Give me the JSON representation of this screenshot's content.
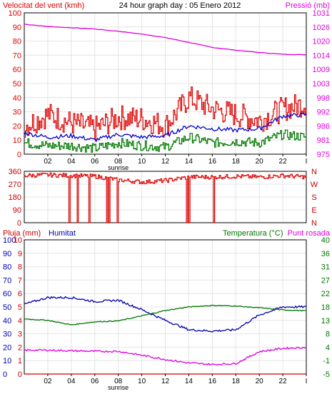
{
  "header": {
    "wind_label": "Velocitat del vent (kmh)",
    "title": "24 hour graph day : 05 Enero 2012",
    "pressure_label": "Pressió (mb)"
  },
  "bottom_header": {
    "rain_label": "Pluja (mm)",
    "humidity_label": "Humitat",
    "temperature_label": "Temperatura (°C)",
    "dewpoint_label": "Punt rosada"
  },
  "colors": {
    "wind": "#dd0000",
    "wind_avg": "#0000cc",
    "wind_low": "#007700",
    "pressure": "#dd00dd",
    "rain": "#cc0000",
    "humidity": "#0000aa",
    "temperature": "#007700",
    "dewpoint": "#dd00dd",
    "grid": "#e4e4e4",
    "frame": "#000000"
  },
  "x_axis": {
    "ticks": [
      "02",
      "04",
      "06",
      "08",
      "10",
      "12",
      "14",
      "16",
      "18",
      "20",
      "22",
      "I"
    ],
    "sunrise_label": "sunrise"
  },
  "chart_data": [
    {
      "type": "line",
      "title": "24 hour graph day : 05 Enero 2012",
      "xlabel": "",
      "left_axis": {
        "label": "Velocitat del vent (kmh)",
        "ticks": [
          0,
          10,
          20,
          30,
          40,
          50,
          60,
          70,
          80,
          90,
          100
        ],
        "ylim": [
          0,
          100
        ]
      },
      "right_axis": {
        "label": "Pressió (mb)",
        "ticks": [
          975,
          981,
          986,
          992,
          998,
          1003,
          1009,
          1014,
          1020,
          1026,
          1031
        ],
        "ylim": [
          975,
          1031
        ]
      },
      "x": [
        0,
        2,
        4,
        6,
        8,
        10,
        12,
        14,
        16,
        18,
        20,
        22,
        24
      ],
      "series": [
        {
          "key": "gust",
          "axis": "left",
          "values": [
            20,
            28,
            22,
            18,
            26,
            25,
            20,
            40,
            32,
            28,
            24,
            32,
            36
          ]
        },
        {
          "key": "average",
          "axis": "left",
          "values": [
            15,
            12,
            13,
            10,
            14,
            12,
            13,
            20,
            18,
            17,
            18,
            27,
            28
          ]
        },
        {
          "key": "low",
          "axis": "left",
          "values": [
            8,
            6,
            6,
            4,
            8,
            6,
            5,
            12,
            8,
            9,
            8,
            14,
            12
          ]
        },
        {
          "key": "pressure",
          "axis": "right",
          "values": [
            1026.5,
            1025.6,
            1025.1,
            1024.6,
            1023.7,
            1022.6,
            1021.2,
            1019.3,
            1017.3,
            1016.2,
            1015.3,
            1014.6,
            1014.4
          ]
        }
      ],
      "grid": true
    },
    {
      "type": "line",
      "title": "",
      "left_axis": {
        "ticks_top_to_bottom": [
          "360",
          "270",
          "180",
          "90",
          "0"
        ],
        "ylim": [
          0,
          360
        ]
      },
      "right_axis": {
        "ticks_top_to_bottom": [
          "N",
          "W",
          "S",
          "E",
          "N"
        ]
      },
      "x": [
        0,
        2,
        4,
        6,
        8,
        10,
        12,
        14,
        16,
        18,
        20,
        22,
        24
      ],
      "series": [
        {
          "key": "wind_direction",
          "values": [
            330,
            335,
            330,
            325,
            300,
            285,
            295,
            320,
            320,
            325,
            320,
            330,
            320
          ]
        }
      ],
      "drops_to_zero_at_hours": [
        3.8,
        4.5,
        5.5,
        7.0,
        7.2,
        7.9,
        13.8,
        14.0,
        16.1
      ],
      "grid": true
    },
    {
      "type": "line",
      "title": "",
      "axes": {
        "rain": {
          "label": "Pluja (mm)",
          "ticks": [
            0,
            1,
            2,
            3,
            4,
            5,
            6,
            7,
            8,
            9,
            10
          ],
          "ylim": [
            0,
            10
          ]
        },
        "humidity": {
          "label": "Humitat",
          "ticks": [
            0,
            10,
            20,
            30,
            40,
            50,
            60,
            70,
            80,
            90,
            100
          ],
          "ylim": [
            0,
            100
          ]
        },
        "temperature": {
          "label": "Temperatura (°C)",
          "ticks": [
            -5,
            -1,
            4,
            8,
            13,
            18,
            22,
            27,
            31,
            36,
            40
          ],
          "ylim": [
            -5,
            40
          ]
        }
      },
      "x": [
        0,
        2,
        4,
        6,
        8,
        10,
        12,
        14,
        16,
        18,
        20,
        22,
        24
      ],
      "series": [
        {
          "key": "rain",
          "axis": "rain",
          "values": [
            0,
            0,
            0,
            0,
            0,
            0,
            0,
            0,
            0,
            0,
            0,
            0,
            0
          ]
        },
        {
          "key": "humidity",
          "axis": "humidity",
          "values": [
            52,
            57,
            57,
            54,
            55,
            48,
            40,
            33,
            32,
            33,
            44,
            50,
            50
          ]
        },
        {
          "key": "temperature",
          "axis": "temperature",
          "values": [
            13.5,
            13.0,
            11.5,
            12.5,
            12.8,
            14.5,
            16.3,
            17.5,
            18.0,
            17.8,
            17.2,
            16.5,
            16.2
          ]
        },
        {
          "key": "dewpoint",
          "axis": "temperature",
          "values": [
            3.0,
            3.0,
            2.8,
            2.6,
            2.6,
            1.3,
            -0.1,
            -1.3,
            -1.8,
            -1.5,
            2.5,
            3.6,
            3.9
          ]
        }
      ],
      "grid": true
    }
  ]
}
